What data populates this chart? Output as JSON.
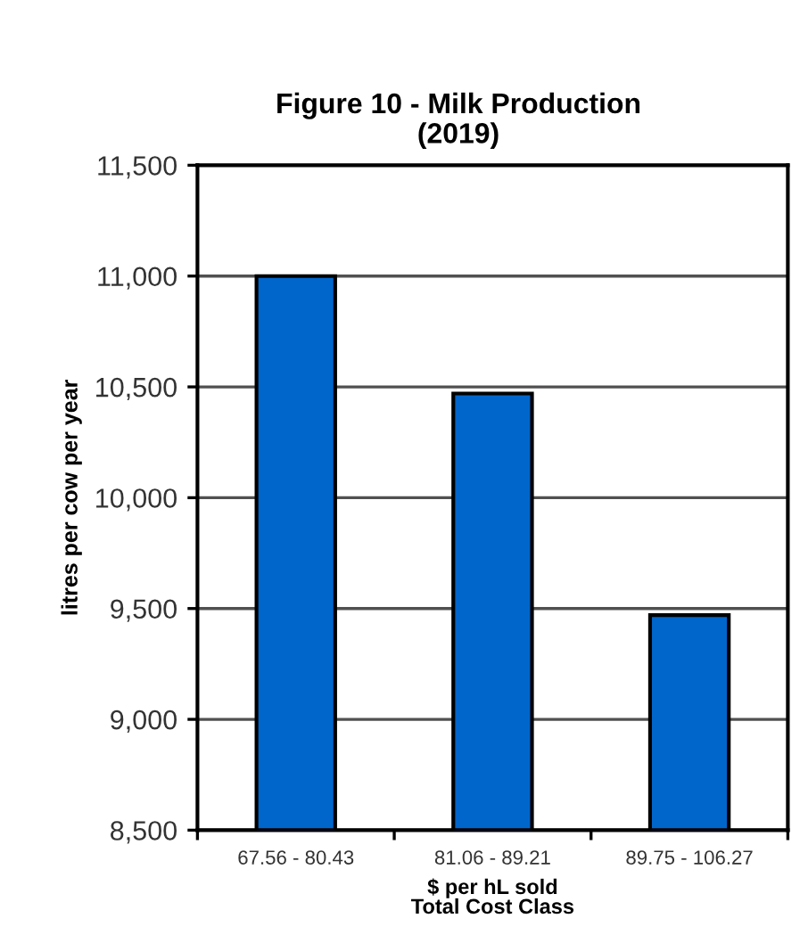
{
  "chart_data": {
    "type": "bar",
    "title": "Figure 10 - Milk Production\n(2019)",
    "xlabel": "$ per hL sold\nTotal Cost Class",
    "ylabel": "litres per cow per year",
    "categories": [
      "67.56 - 80.43",
      "81.06 - 89.21",
      "89.75 - 106.27"
    ],
    "values": [
      11000,
      10470,
      9470
    ],
    "color": "#0066cc",
    "ylim": [
      8500,
      11500
    ],
    "yticks": [
      {
        "value": 8500,
        "label": "8,500"
      },
      {
        "value": 9000,
        "label": "9,000"
      },
      {
        "value": 9500,
        "label": "9,500"
      },
      {
        "value": 10000,
        "label": "10,000"
      },
      {
        "value": 10500,
        "label": "10,500"
      },
      {
        "value": 11000,
        "label": "11,000"
      },
      {
        "value": 11500,
        "label": "11,500"
      }
    ],
    "grid": "y"
  }
}
